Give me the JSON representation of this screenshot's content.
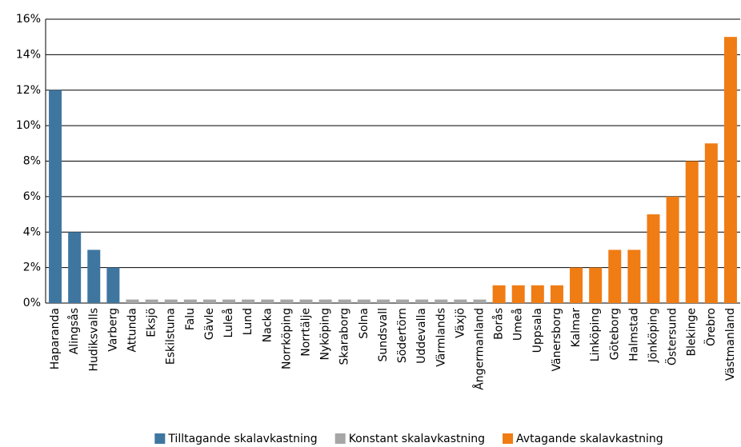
{
  "chart_data": {
    "type": "bar",
    "categories": [
      "Haparanda",
      "Alingsås",
      "Hudiksvalls",
      "Varberg",
      "Attunda",
      "Eksjö",
      "Eskilstuna",
      "Falu",
      "Gävle",
      "Luleå",
      "Lund",
      "Nacka",
      "Norrköping",
      "Norrtälje",
      "Nyköping",
      "Skaraborg",
      "Solna",
      "Sundsvall",
      "Södertörn",
      "Uddevalla",
      "Värmlands",
      "Växjö",
      "Ångermanland",
      "Borås",
      "Umeå",
      "Uppsala",
      "Vänersborg",
      "Kalmar",
      "Linköping",
      "Göteborg",
      "Halmstad",
      "Jönköping",
      "Östersund",
      "Blekinge",
      "Örebro",
      "Västmanland"
    ],
    "series": [
      {
        "name": "Tilltagande skalavkastning",
        "color": "#3f76a0",
        "values": [
          12,
          4,
          3,
          2,
          null,
          null,
          null,
          null,
          null,
          null,
          null,
          null,
          null,
          null,
          null,
          null,
          null,
          null,
          null,
          null,
          null,
          null,
          null,
          null,
          null,
          null,
          null,
          null,
          null,
          null,
          null,
          null,
          null,
          null,
          null,
          null
        ]
      },
      {
        "name": "Konstant skalavkastning",
        "color": "#a6a6a6",
        "values": [
          null,
          null,
          null,
          null,
          0.2,
          0.2,
          0.2,
          0.2,
          0.2,
          0.2,
          0.2,
          0.2,
          0.2,
          0.2,
          0.2,
          0.2,
          0.2,
          0.2,
          0.2,
          0.2,
          0.2,
          0.2,
          0.2,
          null,
          null,
          null,
          null,
          null,
          null,
          null,
          null,
          null,
          null,
          null,
          null,
          null
        ]
      },
      {
        "name": "Avtagande skalavkastning",
        "color": "#f07c14",
        "values": [
          null,
          null,
          null,
          null,
          null,
          null,
          null,
          null,
          null,
          null,
          null,
          null,
          null,
          null,
          null,
          null,
          null,
          null,
          null,
          null,
          null,
          null,
          null,
          1,
          1,
          1,
          1,
          2,
          2,
          3,
          3,
          5,
          6,
          8,
          9,
          15
        ]
      }
    ],
    "ylim": [
      0,
      16
    ],
    "yticks": [
      {
        "value": 0,
        "label": "0%"
      },
      {
        "value": 2,
        "label": "2%"
      },
      {
        "value": 4,
        "label": "4%"
      },
      {
        "value": 6,
        "label": "6%"
      },
      {
        "value": 8,
        "label": "8%"
      },
      {
        "value": 10,
        "label": "10%"
      },
      {
        "value": 12,
        "label": "12%"
      },
      {
        "value": 14,
        "label": "14%"
      },
      {
        "value": 16,
        "label": "16%"
      }
    ],
    "grid": true,
    "legend": "bottom"
  }
}
